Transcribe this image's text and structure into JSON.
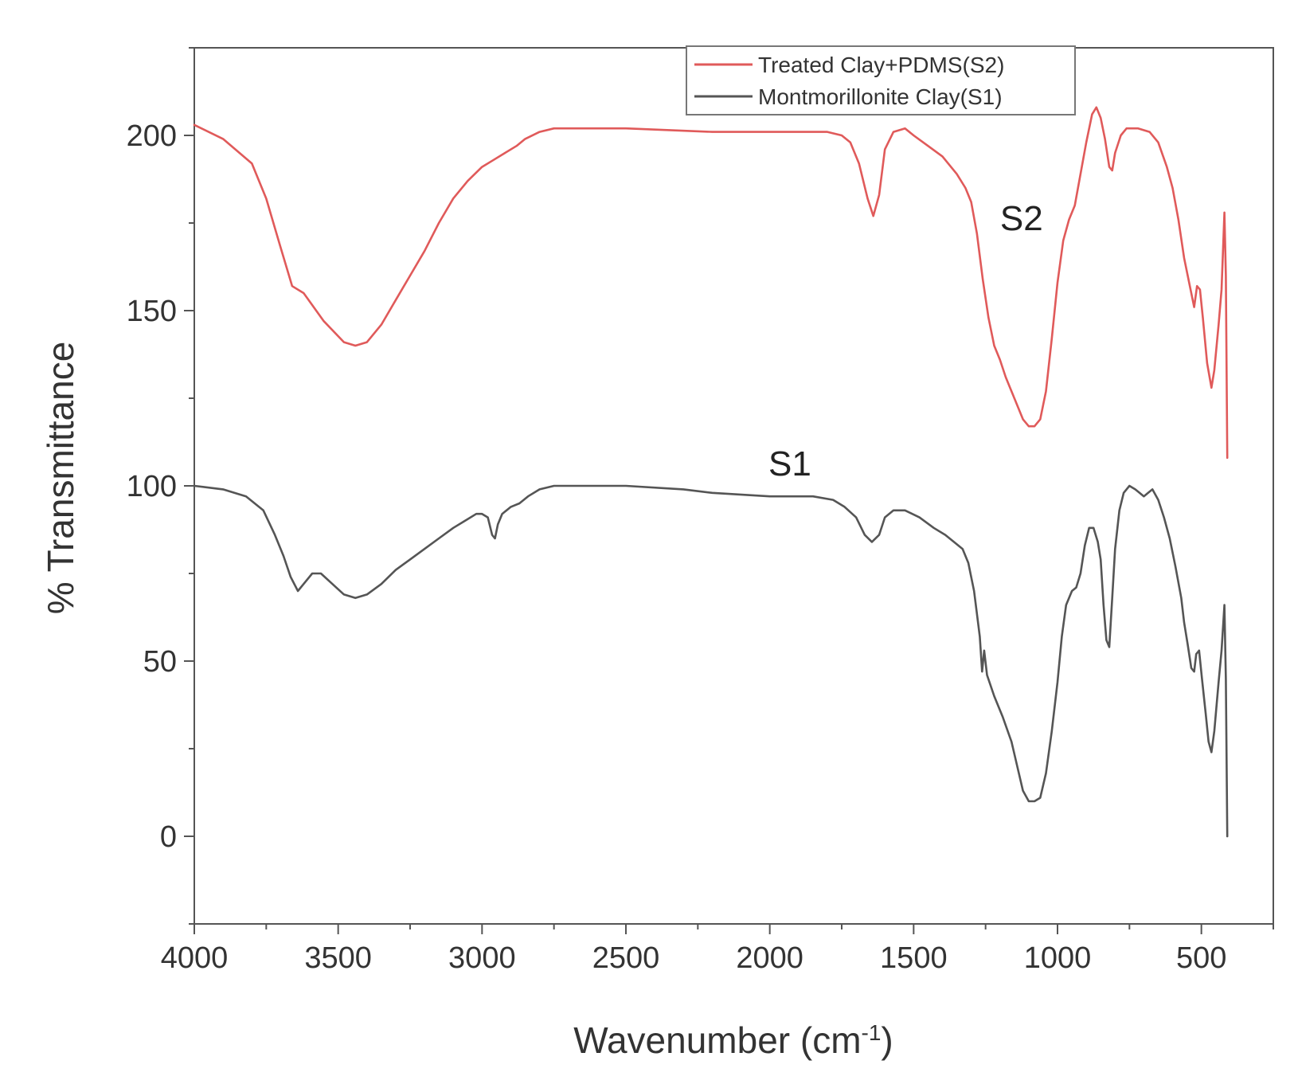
{
  "chart_data": {
    "type": "line",
    "xlabel": "Wavenumber (cm",
    "xlabel_sup": "-1",
    "xlabel_close": ")",
    "ylabel": "% Transmittance",
    "xlim": [
      4000,
      250
    ],
    "ylim": [
      -25,
      225
    ],
    "x_ticks": [
      4000,
      3500,
      3000,
      2500,
      2000,
      1500,
      1000,
      500
    ],
    "y_ticks": [
      0,
      50,
      100,
      150,
      200
    ],
    "grid": false,
    "legend_position": "top-right",
    "legend": [
      {
        "label": "Treated Clay+PDMS(S2)",
        "series": 0
      },
      {
        "label": "Montmorillonite Clay(S1)",
        "series": 1
      }
    ],
    "annotations": [
      {
        "text": "S2",
        "x": 1125,
        "y": 173
      },
      {
        "text": "S1",
        "x": 1930,
        "y": 103
      }
    ],
    "series": [
      {
        "name": "Treated Clay+PDMS(S2)",
        "color": "#e05a5a",
        "points": [
          [
            4000,
            203
          ],
          [
            3900,
            199
          ],
          [
            3800,
            192
          ],
          [
            3750,
            182
          ],
          [
            3700,
            168
          ],
          [
            3660,
            157
          ],
          [
            3620,
            155
          ],
          [
            3550,
            147
          ],
          [
            3480,
            141
          ],
          [
            3440,
            140
          ],
          [
            3400,
            141
          ],
          [
            3350,
            146
          ],
          [
            3300,
            153
          ],
          [
            3250,
            160
          ],
          [
            3200,
            167
          ],
          [
            3150,
            175
          ],
          [
            3100,
            182
          ],
          [
            3050,
            187
          ],
          [
            3000,
            191
          ],
          [
            2960,
            193
          ],
          [
            2920,
            195
          ],
          [
            2880,
            197
          ],
          [
            2850,
            199
          ],
          [
            2800,
            201
          ],
          [
            2750,
            202
          ],
          [
            2700,
            202
          ],
          [
            2500,
            202
          ],
          [
            2200,
            201
          ],
          [
            2000,
            201
          ],
          [
            1800,
            201
          ],
          [
            1750,
            200
          ],
          [
            1720,
            198
          ],
          [
            1690,
            192
          ],
          [
            1660,
            182
          ],
          [
            1640,
            177
          ],
          [
            1620,
            183
          ],
          [
            1600,
            196
          ],
          [
            1570,
            201
          ],
          [
            1530,
            202
          ],
          [
            1500,
            200
          ],
          [
            1450,
            197
          ],
          [
            1400,
            194
          ],
          [
            1350,
            189
          ],
          [
            1320,
            185
          ],
          [
            1300,
            181
          ],
          [
            1280,
            172
          ],
          [
            1260,
            159
          ],
          [
            1240,
            148
          ],
          [
            1220,
            140
          ],
          [
            1200,
            136
          ],
          [
            1180,
            131
          ],
          [
            1150,
            125
          ],
          [
            1120,
            119
          ],
          [
            1100,
            117
          ],
          [
            1080,
            117
          ],
          [
            1060,
            119
          ],
          [
            1040,
            127
          ],
          [
            1020,
            142
          ],
          [
            1000,
            158
          ],
          [
            980,
            170
          ],
          [
            960,
            176
          ],
          [
            940,
            180
          ],
          [
            920,
            189
          ],
          [
            900,
            198
          ],
          [
            880,
            206
          ],
          [
            865,
            208
          ],
          [
            850,
            205
          ],
          [
            835,
            199
          ],
          [
            820,
            191
          ],
          [
            810,
            190
          ],
          [
            800,
            195
          ],
          [
            780,
            200
          ],
          [
            760,
            202
          ],
          [
            720,
            202
          ],
          [
            680,
            201
          ],
          [
            650,
            198
          ],
          [
            620,
            191
          ],
          [
            600,
            185
          ],
          [
            580,
            176
          ],
          [
            560,
            165
          ],
          [
            540,
            157
          ],
          [
            525,
            151
          ],
          [
            515,
            157
          ],
          [
            505,
            156
          ],
          [
            495,
            148
          ],
          [
            480,
            135
          ],
          [
            465,
            128
          ],
          [
            455,
            133
          ],
          [
            440,
            146
          ],
          [
            430,
            156
          ],
          [
            420,
            178
          ],
          [
            415,
            160
          ],
          [
            410,
            108
          ]
        ]
      },
      {
        "name": "Montmorillonite Clay(S1)",
        "color": "#555555",
        "points": [
          [
            4000,
            100
          ],
          [
            3900,
            99
          ],
          [
            3820,
            97
          ],
          [
            3760,
            93
          ],
          [
            3720,
            86
          ],
          [
            3690,
            80
          ],
          [
            3665,
            74
          ],
          [
            3640,
            70
          ],
          [
            3620,
            72
          ],
          [
            3590,
            75
          ],
          [
            3560,
            75
          ],
          [
            3520,
            72
          ],
          [
            3480,
            69
          ],
          [
            3440,
            68
          ],
          [
            3400,
            69
          ],
          [
            3350,
            72
          ],
          [
            3300,
            76
          ],
          [
            3250,
            79
          ],
          [
            3200,
            82
          ],
          [
            3150,
            85
          ],
          [
            3100,
            88
          ],
          [
            3060,
            90
          ],
          [
            3020,
            92
          ],
          [
            3000,
            92
          ],
          [
            2980,
            91
          ],
          [
            2965,
            86
          ],
          [
            2955,
            85
          ],
          [
            2945,
            89
          ],
          [
            2930,
            92
          ],
          [
            2900,
            94
          ],
          [
            2870,
            95
          ],
          [
            2840,
            97
          ],
          [
            2800,
            99
          ],
          [
            2750,
            100
          ],
          [
            2500,
            100
          ],
          [
            2300,
            99
          ],
          [
            2200,
            98
          ],
          [
            2000,
            97
          ],
          [
            1850,
            97
          ],
          [
            1780,
            96
          ],
          [
            1740,
            94
          ],
          [
            1700,
            91
          ],
          [
            1670,
            86
          ],
          [
            1645,
            84
          ],
          [
            1620,
            86
          ],
          [
            1600,
            91
          ],
          [
            1570,
            93
          ],
          [
            1530,
            93
          ],
          [
            1480,
            91
          ],
          [
            1430,
            88
          ],
          [
            1390,
            86
          ],
          [
            1360,
            84
          ],
          [
            1330,
            82
          ],
          [
            1310,
            78
          ],
          [
            1290,
            70
          ],
          [
            1270,
            57
          ],
          [
            1262,
            47
          ],
          [
            1255,
            53
          ],
          [
            1245,
            46
          ],
          [
            1220,
            40
          ],
          [
            1190,
            34
          ],
          [
            1160,
            27
          ],
          [
            1140,
            20
          ],
          [
            1120,
            13
          ],
          [
            1100,
            10
          ],
          [
            1080,
            10
          ],
          [
            1060,
            11
          ],
          [
            1040,
            18
          ],
          [
            1020,
            30
          ],
          [
            1000,
            44
          ],
          [
            985,
            57
          ],
          [
            970,
            66
          ],
          [
            950,
            70
          ],
          [
            935,
            71
          ],
          [
            920,
            75
          ],
          [
            905,
            83
          ],
          [
            890,
            88
          ],
          [
            875,
            88
          ],
          [
            860,
            84
          ],
          [
            850,
            79
          ],
          [
            840,
            66
          ],
          [
            830,
            56
          ],
          [
            820,
            54
          ],
          [
            810,
            68
          ],
          [
            800,
            82
          ],
          [
            785,
            93
          ],
          [
            770,
            98
          ],
          [
            750,
            100
          ],
          [
            730,
            99
          ],
          [
            715,
            98
          ],
          [
            700,
            97
          ],
          [
            685,
            98
          ],
          [
            670,
            99
          ],
          [
            650,
            96
          ],
          [
            630,
            91
          ],
          [
            610,
            85
          ],
          [
            590,
            77
          ],
          [
            570,
            68
          ],
          [
            560,
            61
          ],
          [
            548,
            55
          ],
          [
            535,
            48
          ],
          [
            525,
            47
          ],
          [
            518,
            52
          ],
          [
            508,
            53
          ],
          [
            498,
            45
          ],
          [
            485,
            35
          ],
          [
            475,
            27
          ],
          [
            465,
            24
          ],
          [
            455,
            30
          ],
          [
            440,
            44
          ],
          [
            430,
            53
          ],
          [
            420,
            66
          ],
          [
            415,
            45
          ],
          [
            410,
            0
          ]
        ]
      }
    ]
  }
}
